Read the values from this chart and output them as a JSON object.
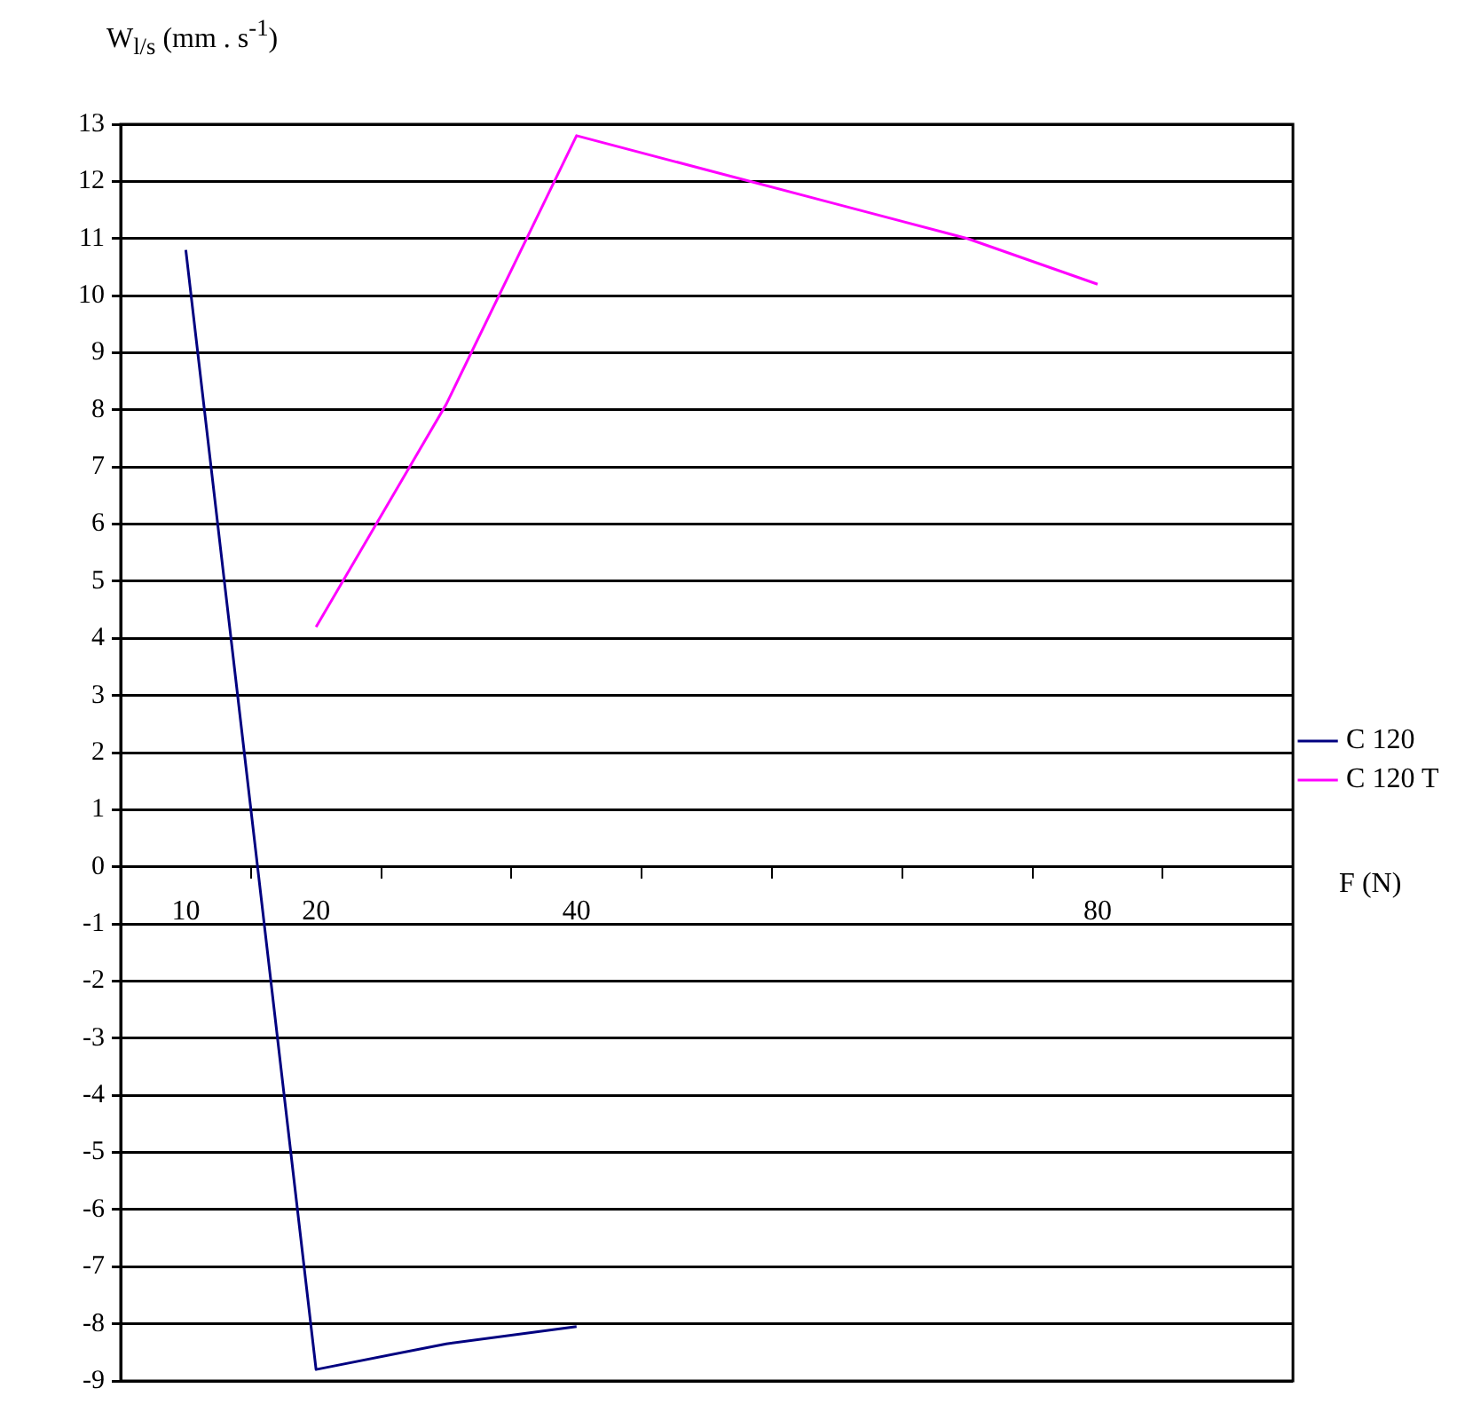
{
  "chart_data": {
    "type": "line",
    "ylabel": "W$_{l/s}$ (mm . s$^{-1}$)",
    "xlabel": "F (N)",
    "categories": [
      "10",
      "20",
      null,
      "40",
      null,
      null,
      null,
      "80",
      null
    ],
    "series": [
      {
        "name": "C 120",
        "color": "#000080",
        "values": [
          10.8,
          -8.8,
          -8.35,
          -8.05,
          null,
          null,
          null,
          null,
          null
        ]
      },
      {
        "name": "C 120 T",
        "color": "#ff00ff",
        "values": [
          null,
          4.2,
          8.1,
          12.8,
          12.2,
          11.6,
          11.0,
          10.2,
          null
        ]
      }
    ],
    "ylim": [
      -9,
      13
    ],
    "yticks": [
      -9,
      -8,
      -7,
      -6,
      -5,
      -4,
      -3,
      -2,
      -1,
      0,
      1,
      2,
      3,
      4,
      5,
      6,
      7,
      8,
      9,
      10,
      11,
      12,
      13
    ],
    "grid": "y",
    "legend": "right",
    "marker": "none",
    "line_style": "solid"
  }
}
